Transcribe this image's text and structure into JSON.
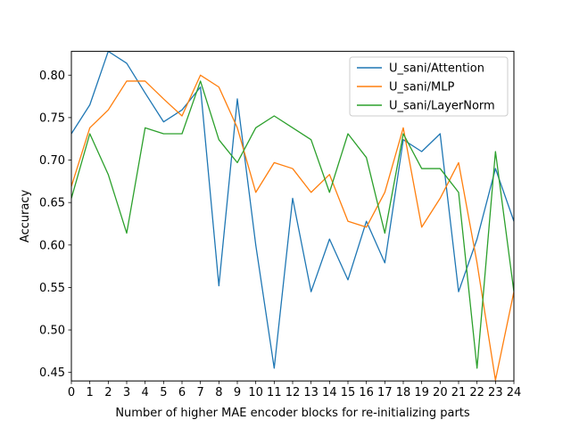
{
  "chart_data": {
    "type": "line",
    "title": "",
    "xlabel": "Number of higher MAE encoder blocks for re-initializing parts",
    "ylabel": "Accuracy",
    "xlim": [
      0,
      24
    ],
    "ylim": [
      0.44,
      0.828
    ],
    "x": [
      0,
      1,
      2,
      3,
      4,
      5,
      6,
      7,
      8,
      9,
      10,
      11,
      12,
      13,
      14,
      15,
      16,
      17,
      18,
      19,
      20,
      21,
      22,
      23,
      24
    ],
    "xticks": [
      "0",
      "1",
      "2",
      "3",
      "4",
      "5",
      "6",
      "7",
      "8",
      "9",
      "10",
      "11",
      "12",
      "13",
      "14",
      "15",
      "16",
      "17",
      "18",
      "19",
      "20",
      "21",
      "22",
      "23",
      "24"
    ],
    "yticks": [
      0.45,
      0.5,
      0.55,
      0.6,
      0.65,
      0.7,
      0.75,
      0.8
    ],
    "ytick_labels": [
      "0.45",
      "0.50",
      "0.55",
      "0.60",
      "0.65",
      "0.70",
      "0.75",
      "0.80"
    ],
    "grid": false,
    "legend_position": "top-right",
    "series": [
      {
        "name": "U_sani/Attention",
        "color": "#1f77b4",
        "values": [
          0.731,
          0.765,
          0.828,
          0.814,
          0.779,
          0.745,
          0.759,
          0.786,
          0.552,
          0.772,
          0.6,
          0.455,
          0.655,
          0.545,
          0.607,
          0.559,
          0.628,
          0.579,
          0.724,
          0.71,
          0.731,
          0.545,
          0.607,
          0.69,
          0.628
        ]
      },
      {
        "name": "U_sani/MLP",
        "color": "#ff7f0e",
        "values": [
          0.669,
          0.738,
          0.759,
          0.793,
          0.793,
          0.772,
          0.752,
          0.8,
          0.786,
          0.738,
          0.662,
          0.697,
          0.69,
          0.662,
          0.683,
          0.628,
          0.621,
          0.662,
          0.738,
          0.621,
          0.655,
          0.697,
          0.579,
          0.441,
          0.545
        ]
      },
      {
        "name": "U_sani/LayerNorm",
        "color": "#2ca02c",
        "values": [
          0.655,
          0.731,
          0.683,
          0.614,
          0.738,
          0.731,
          0.731,
          0.793,
          0.724,
          0.697,
          0.738,
          0.752,
          0.738,
          0.724,
          0.662,
          0.731,
          0.703,
          0.614,
          0.731,
          0.69,
          0.69,
          0.662,
          0.455,
          0.71,
          0.545
        ]
      }
    ]
  }
}
